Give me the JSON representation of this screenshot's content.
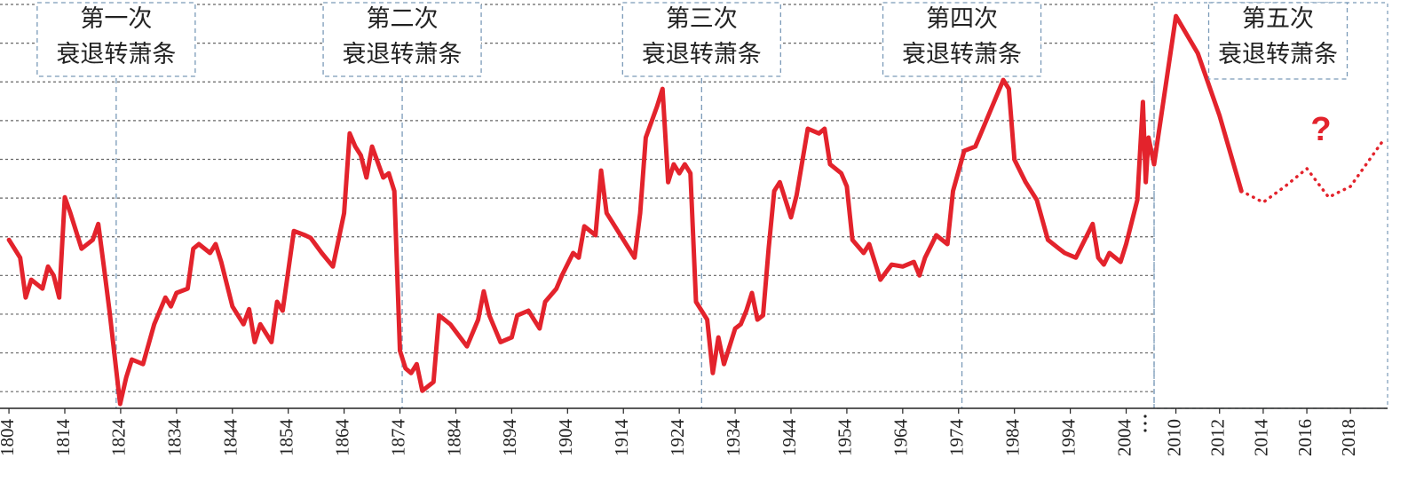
{
  "chart_data": {
    "type": "line",
    "xlim": [
      1802.4,
      2019.7
    ],
    "xbreak": 2009,
    "ylim": [
      0.5,
      11
    ],
    "yticks": [
      1,
      2,
      3,
      4,
      5,
      6,
      7,
      8,
      9,
      10
    ],
    "grid": true,
    "xticks": [
      1804,
      1814,
      1824,
      1834,
      1844,
      1854,
      1864,
      1874,
      1884,
      1894,
      1904,
      1914,
      1924,
      1934,
      1944,
      1954,
      1964,
      1974,
      1984,
      1994,
      2004,
      2010,
      2012,
      2014,
      2016,
      2018
    ],
    "dividers": [
      1823.2,
      1874.4,
      1928,
      1974.6,
      2009
    ],
    "annotations": [
      [
        "第一次",
        "衰退转萧条"
      ],
      [
        "第二次",
        "衰退转萧条"
      ],
      [
        "第三次",
        "衰退转萧条"
      ],
      [
        "第四次",
        "衰退转萧条"
      ],
      [
        "第五次",
        "衰退转萧条"
      ]
    ],
    "forecast_label": "?",
    "series": [
      {
        "color": "#e3232c",
        "style": "solid",
        "x": [
          1804,
          1806,
          1807,
          1808,
          1810,
          1811,
          1812,
          1813,
          1814,
          1815,
          1817,
          1819,
          1820,
          1821,
          1822,
          1823.9,
          1825,
          1826,
          1828,
          1830,
          1832,
          1833,
          1834,
          1836,
          1837,
          1838,
          1840,
          1841,
          1842,
          1844,
          1846,
          1847,
          1848,
          1849,
          1851,
          1852,
          1853,
          1855,
          1857,
          1858,
          1860,
          1862,
          1864,
          1865,
          1866,
          1867,
          1868,
          1869,
          1871,
          1872,
          1873,
          1874,
          1875,
          1876,
          1877,
          1878,
          1880,
          1881,
          1883,
          1886,
          1888,
          1889,
          1890,
          1892,
          1894,
          1895,
          1897,
          1898,
          1899,
          1900,
          1902,
          1903,
          1905,
          1906,
          1907,
          1909,
          1910,
          1911,
          1912,
          1914,
          1916,
          1917,
          1918,
          1920,
          1921,
          1922,
          1923,
          1924,
          1925,
          1926,
          1927,
          1929,
          1930,
          1931,
          1932,
          1934,
          1935,
          1936,
          1937,
          1938,
          1939,
          1940,
          1941,
          1942,
          1944,
          1945,
          1947,
          1949,
          1950,
          1951,
          1953,
          1954,
          1955,
          1957,
          1958,
          1960,
          1962,
          1964,
          1966,
          1967,
          1968,
          1970,
          1972,
          1973,
          1975,
          1977,
          1978,
          1980,
          1982,
          1983,
          1984,
          1986,
          1988,
          1990,
          1992,
          1993,
          1995,
          1997,
          1998,
          1999,
          2000,
          2001,
          2003,
          2004,
          2006,
          2007,
          2007.5,
          2008,
          2009,
          2010,
          2011,
          2012,
          2013
        ],
        "values": [
          4.92,
          4.46,
          3.43,
          3.89,
          3.66,
          4.23,
          4.0,
          3.43,
          6.02,
          5.61,
          4.69,
          4.92,
          5.33,
          4.23,
          3.09,
          0.68,
          1.37,
          1.83,
          1.71,
          2.74,
          3.43,
          3.2,
          3.55,
          3.66,
          4.69,
          4.81,
          4.58,
          4.81,
          4.35,
          3.2,
          2.74,
          3.13,
          2.28,
          2.74,
          2.28,
          3.32,
          3.09,
          5.15,
          5.04,
          4.97,
          4.58,
          4.23,
          5.61,
          7.67,
          7.33,
          7.1,
          6.53,
          7.33,
          6.53,
          6.64,
          6.18,
          2.06,
          1.6,
          1.48,
          1.71,
          1.02,
          1.25,
          2.97,
          2.74,
          2.17,
          2.86,
          3.59,
          2.97,
          2.28,
          2.4,
          2.97,
          3.09,
          2.86,
          2.63,
          3.32,
          3.66,
          4.0,
          4.58,
          4.46,
          5.27,
          5.04,
          6.71,
          5.61,
          5.38,
          4.92,
          4.46,
          5.61,
          7.56,
          8.36,
          8.82,
          6.41,
          6.87,
          6.64,
          6.87,
          6.64,
          3.32,
          2.86,
          1.48,
          2.4,
          1.71,
          2.63,
          2.74,
          3.09,
          3.55,
          2.86,
          2.97,
          4.69,
          6.18,
          6.41,
          5.5,
          6.07,
          7.79,
          7.67,
          7.79,
          6.87,
          6.64,
          6.3,
          4.92,
          4.58,
          4.81,
          3.89,
          4.28,
          4.23,
          4.35,
          4.0,
          4.46,
          5.04,
          4.81,
          6.18,
          7.22,
          7.33,
          7.67,
          8.36,
          9.05,
          8.82,
          6.99,
          6.41,
          5.95,
          4.92,
          4.69,
          4.58,
          4.46,
          5.04,
          5.33,
          4.46,
          4.28,
          4.58,
          4.35,
          4.81,
          5.95,
          8.48,
          6.41,
          7.56,
          6.87,
          10.7,
          9.74,
          8.13,
          6.18
        ]
      },
      {
        "color": "#e3232c",
        "style": "dotted",
        "x": [
          2013,
          2014,
          2015,
          2016,
          2017,
          2018,
          2019.5
        ],
        "values": [
          6.18,
          5.89,
          6.3,
          6.76,
          6.02,
          6.3,
          7.49
        ]
      }
    ]
  }
}
